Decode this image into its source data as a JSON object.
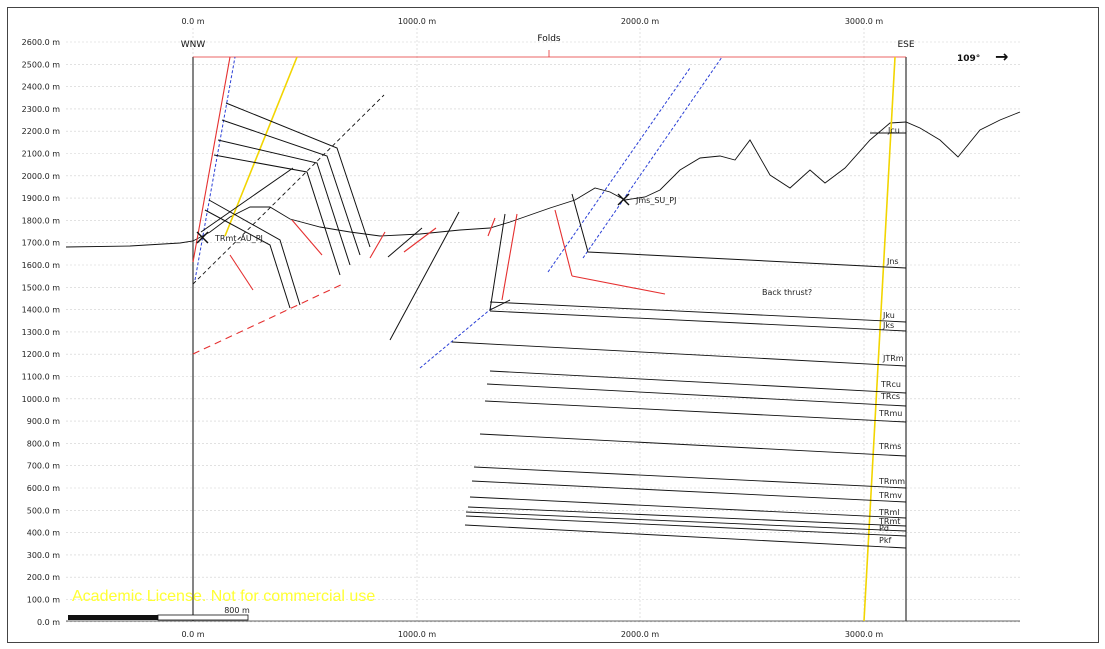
{
  "x_ticks": [
    "0.0 m",
    "1000.0 m",
    "2000.0 m",
    "3000.0 m"
  ],
  "y_ticks": [
    "2600.0 m",
    "2500.0 m",
    "2400.0 m",
    "2300.0 m",
    "2200.0 m",
    "2100.0 m",
    "2000.0 m",
    "1900.0 m",
    "1800.0 m",
    "1700.0 m",
    "1600.0 m",
    "1500.0 m",
    "1400.0 m",
    "1300.0 m",
    "1200.0 m",
    "1100.0 m",
    "1000.0 m",
    "900.0 m",
    "800.0 m",
    "700.0 m",
    "600.0 m",
    "500.0 m",
    "400.0 m",
    "300.0 m",
    "200.0 m",
    "100.0 m",
    "0.0 m"
  ],
  "section": {
    "left_end": "WNW",
    "right_end": "ESE",
    "top_label": "Folds",
    "azimuth": "109°",
    "azimuth_arrow": "→"
  },
  "point_labels": {
    "left_well": "TRmt_AU_PJ",
    "right_well": "Jms_SU_PJ",
    "annotation": "Back thrust?"
  },
  "horizons": [
    "Jcu",
    "Jns",
    "Jku",
    "Jks",
    "JTRm",
    "TRcu",
    "TRcs",
    "TRmu",
    "TRms",
    "TRmm",
    "TRmv",
    "TRml",
    "TRmt",
    "Pd",
    "Pkf"
  ],
  "scale_bar": {
    "label": "800 m"
  },
  "watermark": "Academic License. Not for commercial use",
  "colors": {
    "fault_red": "#e53030",
    "blue_dotted": "#2a3fd6",
    "yellow": "#f2d500",
    "black": "#111111",
    "grid": "#cfcfcf",
    "watermark": "#ffff33"
  }
}
